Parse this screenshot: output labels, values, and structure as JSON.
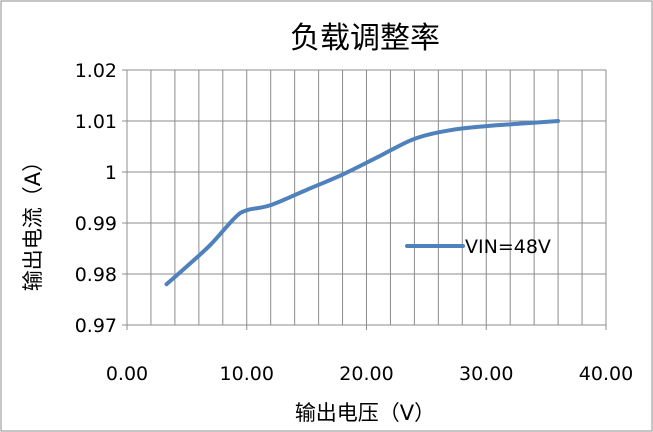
{
  "chart_data": {
    "type": "line",
    "title": "负载调整率",
    "xlabel": "输出电压（V）",
    "ylabel": "输出电流（A）",
    "xlim": [
      0,
      40
    ],
    "ylim": [
      0.97,
      1.02
    ],
    "x_ticks": [
      "0.00",
      "10.00",
      "20.00",
      "30.00",
      "40.00"
    ],
    "y_ticks": [
      "0.97",
      "0.98",
      "0.99",
      "1",
      "1.01",
      "1.02"
    ],
    "grid": true,
    "legend_position": "right",
    "series": [
      {
        "name": "VIN=48V",
        "color": "#4f81bd",
        "x": [
          3.3,
          5.0,
          7.0,
          9.0,
          10.0,
          12.0,
          15.0,
          18.0,
          21.0,
          24.0,
          27.0,
          30.0,
          33.0,
          36.0
        ],
        "y": [
          0.978,
          0.9815,
          0.9858,
          0.991,
          0.9925,
          0.9935,
          0.9965,
          0.9995,
          1.003,
          1.0065,
          1.0082,
          1.009,
          1.0095,
          1.01
        ]
      }
    ]
  }
}
